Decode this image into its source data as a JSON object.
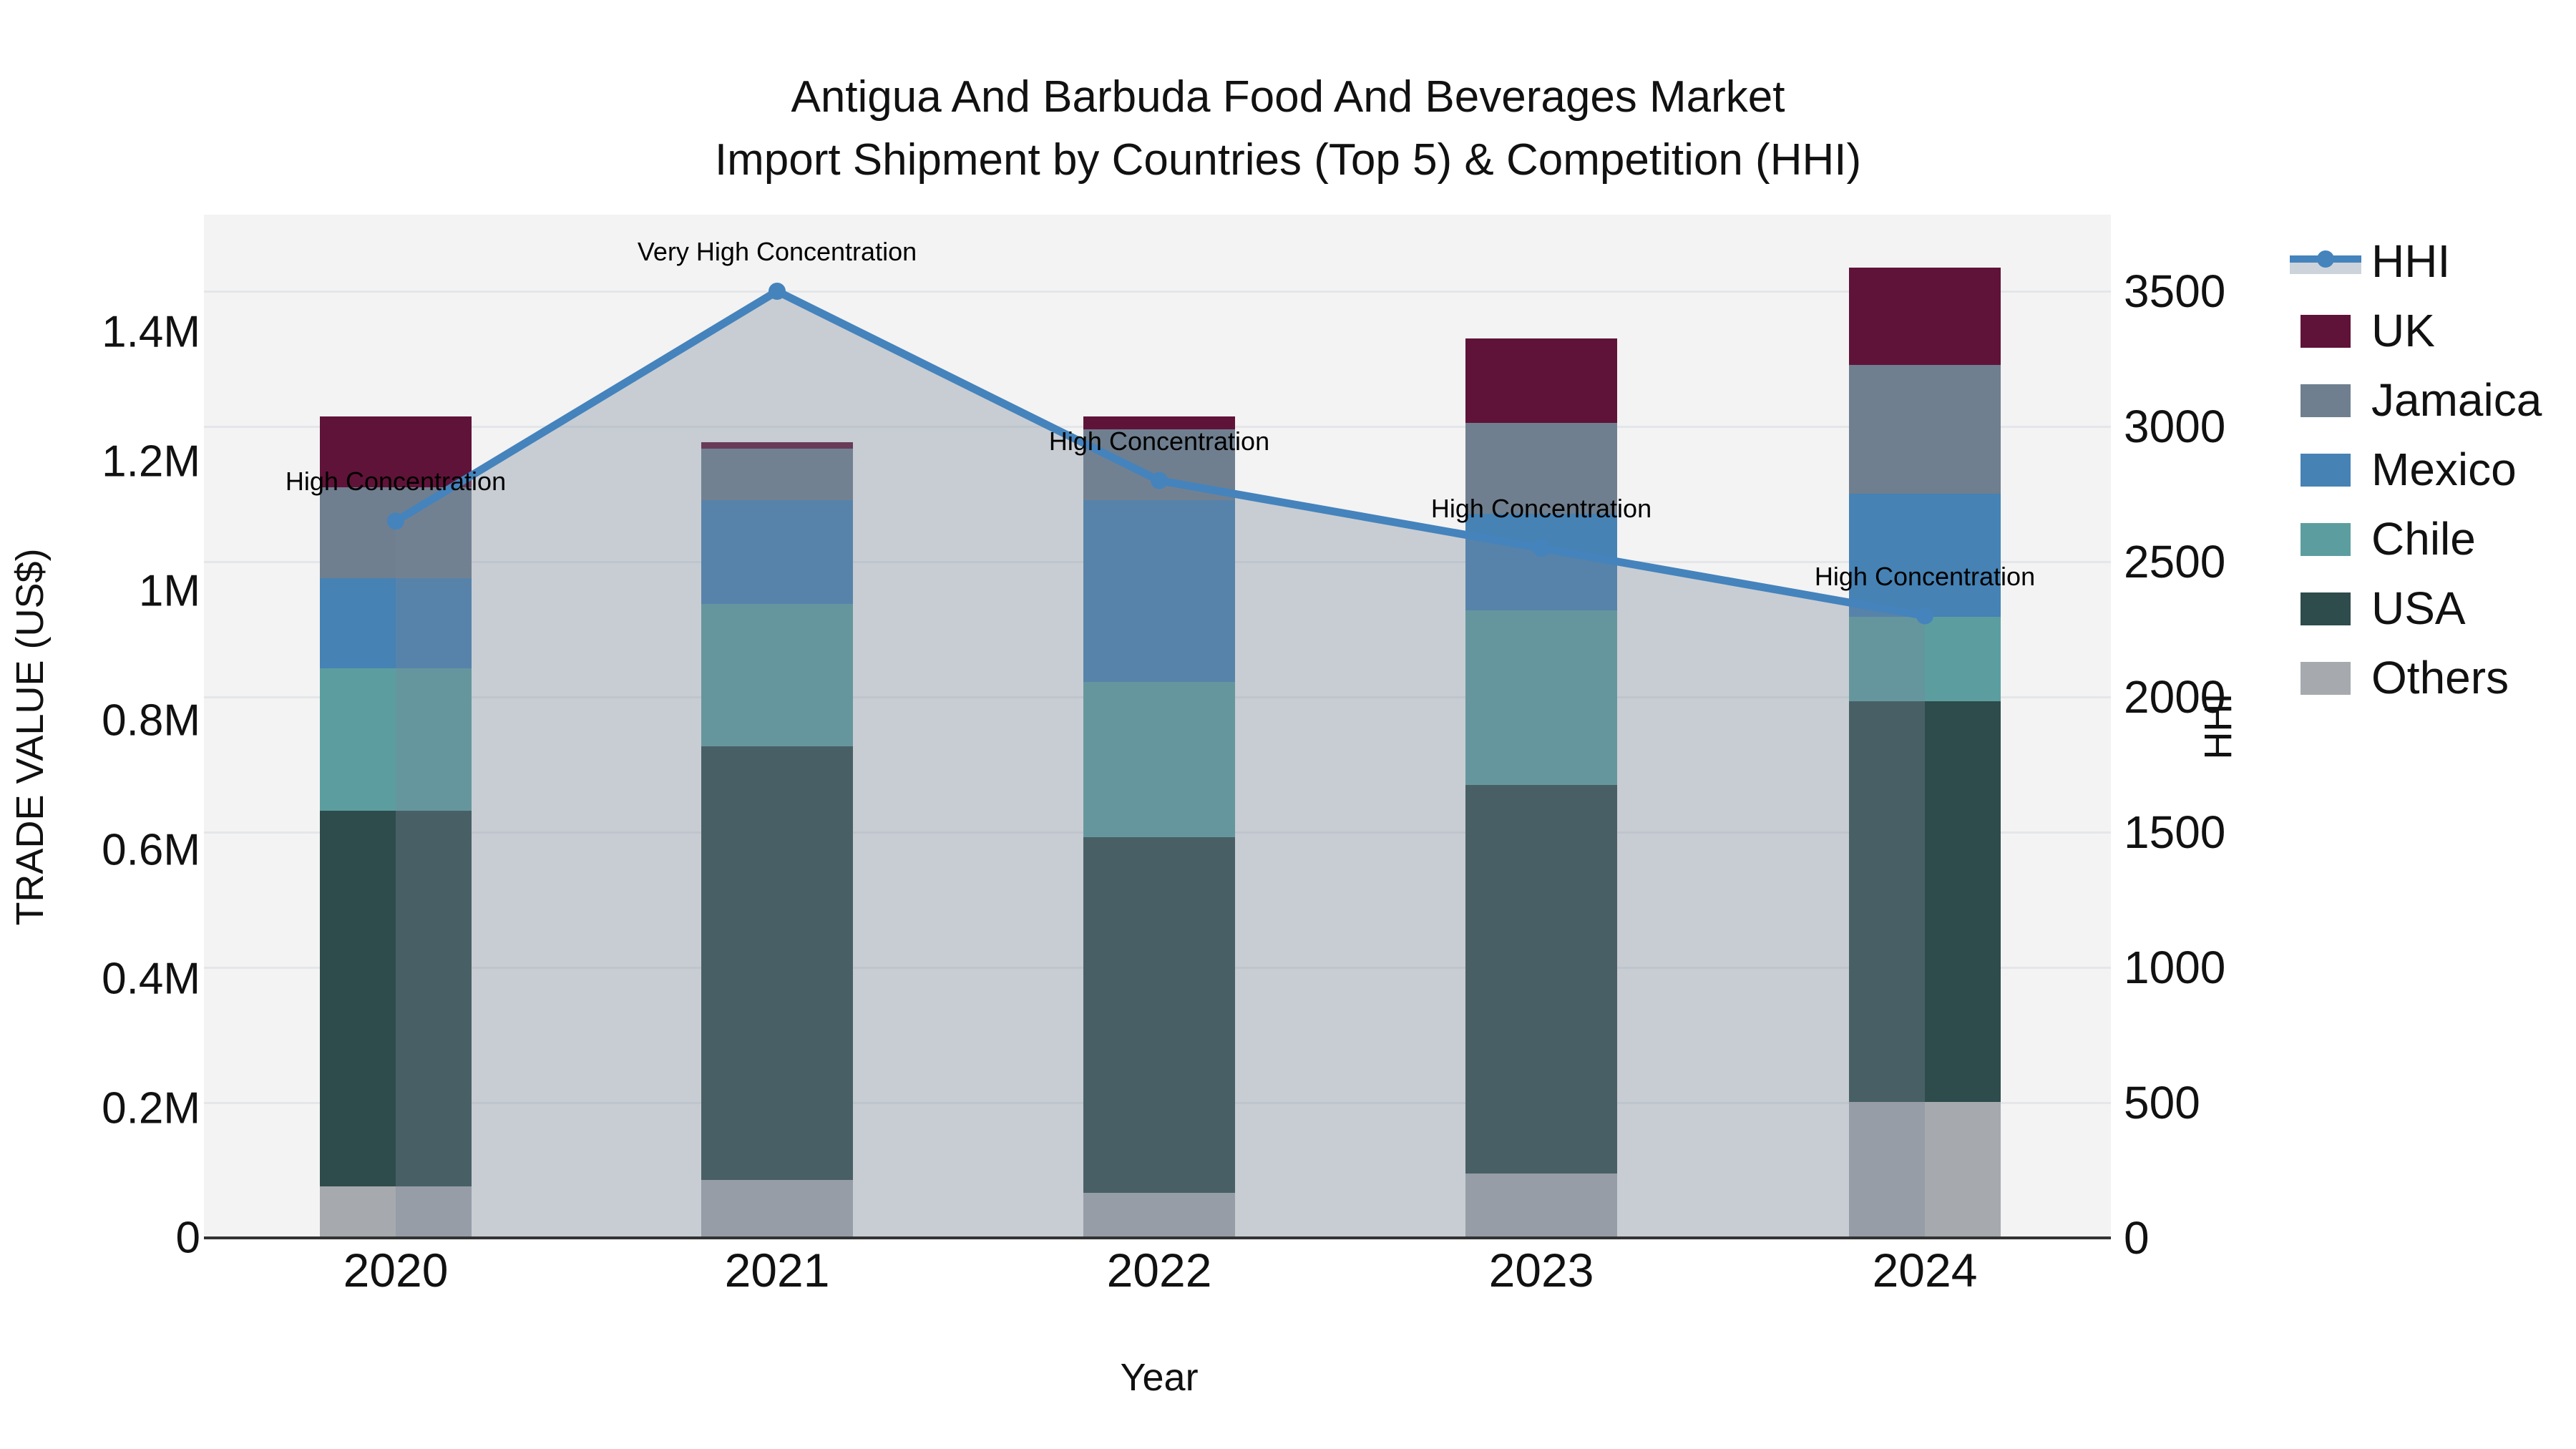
{
  "title": {
    "line1": "Antigua And Barbuda Food And Beverages Market",
    "line2": "Import Shipment by Countries (Top 5) & Competition (HHI)"
  },
  "axes": {
    "x": {
      "title": "Year",
      "ticks": [
        "2020",
        "2021",
        "2022",
        "2023",
        "2024"
      ]
    },
    "y_left": {
      "title": "TRADE VALUE (US$)",
      "ticks": [
        {
          "label": "0",
          "value": 0
        },
        {
          "label": "0.2M",
          "value": 200000
        },
        {
          "label": "0.4M",
          "value": 400000
        },
        {
          "label": "0.6M",
          "value": 600000
        },
        {
          "label": "0.8M",
          "value": 800000
        },
        {
          "label": "1M",
          "value": 1000000
        },
        {
          "label": "1.2M",
          "value": 1200000
        },
        {
          "label": "1.4M",
          "value": 1400000
        }
      ]
    },
    "y_right": {
      "title": "HHI",
      "ticks": [
        {
          "label": "0",
          "value": 0
        },
        {
          "label": "500",
          "value": 500
        },
        {
          "label": "1000",
          "value": 1000
        },
        {
          "label": "1500",
          "value": 1500
        },
        {
          "label": "2000",
          "value": 2000
        },
        {
          "label": "2500",
          "value": 2500
        },
        {
          "label": "3000",
          "value": 3000
        },
        {
          "label": "3500",
          "value": 3500
        }
      ]
    }
  },
  "legend": {
    "items": [
      {
        "label": "HHI",
        "type": "line",
        "color": "#4583BC"
      },
      {
        "label": "UK",
        "type": "box",
        "color": "#601338"
      },
      {
        "label": "Jamaica",
        "type": "box",
        "color": "#6F7F8F"
      },
      {
        "label": "Mexico",
        "type": "box",
        "color": "#4682B4"
      },
      {
        "label": "Chile",
        "type": "box",
        "color": "#5C9EA0"
      },
      {
        "label": "USA",
        "type": "box",
        "color": "#2E4C4B"
      },
      {
        "label": "Others",
        "type": "box",
        "color": "#A6AAAE"
      }
    ]
  },
  "colors": {
    "hhi_line": "#4583BC",
    "hhi_area_fill": "rgba(119,136,153,0.35)",
    "plot_background": "#F3F3F3",
    "gridline": "#E4E6E9",
    "axis_line": "#333333"
  },
  "chart_data": {
    "type": [
      "bar",
      "line"
    ],
    "categories": [
      "2020",
      "2021",
      "2022",
      "2023",
      "2024"
    ],
    "bar_stack_note": "stacked bottom-to-top: Others, USA, Chile, Mexico, Jamaica, UK (left axis, US$)",
    "series": [
      {
        "name": "Others",
        "color": "#A6AAAE",
        "values": [
          80000,
          90000,
          70000,
          100000,
          210000
        ]
      },
      {
        "name": "USA",
        "color": "#2E4C4B",
        "values": [
          580000,
          670000,
          550000,
          600000,
          620000
        ]
      },
      {
        "name": "Chile",
        "color": "#5C9EA0",
        "values": [
          220000,
          220000,
          240000,
          270000,
          130000
        ]
      },
      {
        "name": "Mexico",
        "color": "#4682B4",
        "values": [
          140000,
          160000,
          280000,
          150000,
          190000
        ]
      },
      {
        "name": "Jamaica",
        "color": "#6F7F8F",
        "values": [
          140000,
          80000,
          110000,
          140000,
          200000
        ]
      },
      {
        "name": "UK",
        "color": "#601338",
        "values": [
          110000,
          10000,
          20000,
          130000,
          150000
        ]
      }
    ],
    "totals": [
      1270000,
      1230000,
      1270000,
      1390000,
      1500000
    ],
    "hhi": {
      "name": "HHI",
      "color": "#4583BC",
      "values": [
        2650,
        3500,
        2800,
        2550,
        2300
      ]
    },
    "annotations": [
      "High Concentration",
      "Very High Concentration",
      "High Concentration",
      "High Concentration",
      "High Concentration"
    ],
    "layout_hints": {
      "y_left_range": [
        0,
        1540000
      ],
      "y_right_range": [
        0,
        3780
      ],
      "grid": "horizontal, at right-axis 500 steps",
      "legend_position": "right"
    }
  }
}
